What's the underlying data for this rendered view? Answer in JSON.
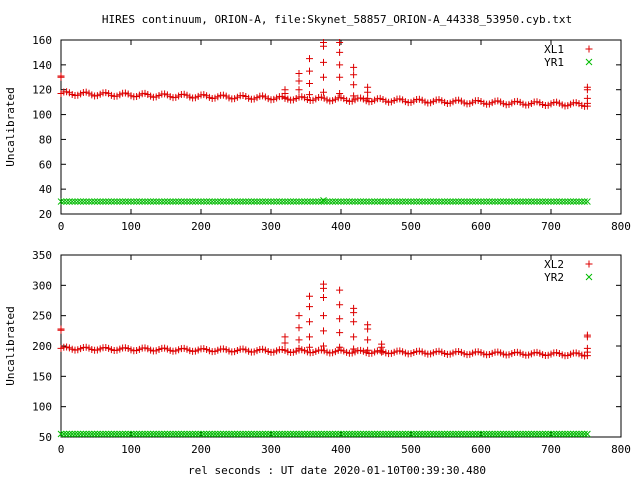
{
  "title": "HIRES continuum, ORION-A, file:Skynet_58857_ORION-A_44338_53950.cyb.txt",
  "xlabel": "rel seconds : UT date 2020-01-10T00:39:30.480",
  "colors": {
    "xl": "#dd0000",
    "yr": "#00bb00",
    "axis": "#000000"
  },
  "chart_data": [
    {
      "type": "scatter",
      "ylabel": "Uncalibrated",
      "xlim": [
        0,
        800
      ],
      "ylim": [
        20,
        160
      ],
      "x_ticks": [
        0,
        100,
        200,
        300,
        400,
        500,
        600,
        700,
        800
      ],
      "y_ticks": [
        20,
        40,
        60,
        80,
        100,
        120,
        140,
        160
      ],
      "legend_position": "top-right",
      "series": [
        {
          "name": "XL1",
          "marker": "plus",
          "baseline": {
            "x_start": 0,
            "x_end": 752,
            "x_step": 4,
            "level_start": 117,
            "level_end": 108,
            "ripple": 1.5,
            "ripple_period": 28
          },
          "extra_points": [
            [
              0,
              130
            ],
            [
              0,
              131
            ],
            [
              752,
              109
            ],
            [
              752,
              113
            ],
            [
              752,
              120
            ],
            [
              752,
              122
            ]
          ],
          "peaks": [
            {
              "x": 320,
              "values": [
                113,
                117,
                120
              ]
            },
            {
              "x": 340,
              "values": [
                114,
                120,
                127,
                133
              ]
            },
            {
              "x": 355,
              "values": [
                116,
                125,
                135,
                145
              ]
            },
            {
              "x": 375,
              "values": [
                118,
                130,
                142,
                155,
                158
              ]
            },
            {
              "x": 398,
              "values": [
                117,
                130,
                140,
                150,
                158
              ]
            },
            {
              "x": 418,
              "values": [
                115,
                124,
                132,
                138
              ]
            },
            {
              "x": 438,
              "values": [
                113,
                118,
                122
              ]
            }
          ]
        },
        {
          "name": "YR1",
          "marker": "cross",
          "baseline": {
            "x_start": 0,
            "x_end": 752,
            "x_step": 4,
            "level_start": 30,
            "level_end": 30,
            "ripple": 0,
            "ripple_period": 28
          },
          "extra_points": [
            [
              375,
              31
            ]
          ],
          "peaks": []
        }
      ]
    },
    {
      "type": "scatter",
      "ylabel": "Uncalibrated",
      "xlim": [
        0,
        800
      ],
      "ylim": [
        50,
        350
      ],
      "x_ticks": [
        0,
        100,
        200,
        300,
        400,
        500,
        600,
        700,
        800
      ],
      "y_ticks": [
        50,
        100,
        150,
        200,
        250,
        300,
        350
      ],
      "legend_position": "top-right",
      "series": [
        {
          "name": "XL2",
          "marker": "plus",
          "baseline": {
            "x_start": 0,
            "x_end": 752,
            "x_step": 4,
            "level_start": 196,
            "level_end": 186,
            "ripple": 2.5,
            "ripple_period": 28
          },
          "extra_points": [
            [
              0,
              226
            ],
            [
              0,
              228
            ],
            [
              752,
              190
            ],
            [
              752,
              196
            ],
            [
              752,
              215
            ],
            [
              752,
              218
            ]
          ],
          "peaks": [
            {
              "x": 320,
              "values": [
                193,
                205,
                215
              ]
            },
            {
              "x": 340,
              "values": [
                196,
                210,
                230,
                250
              ]
            },
            {
              "x": 355,
              "values": [
                198,
                215,
                240,
                265,
                282
              ]
            },
            {
              "x": 375,
              "values": [
                200,
                225,
                250,
                280,
                295,
                302
              ]
            },
            {
              "x": 398,
              "values": [
                198,
                222,
                245,
                268,
                292
              ]
            },
            {
              "x": 418,
              "values": [
                195,
                215,
                240,
                255,
                262
              ]
            },
            {
              "x": 438,
              "values": [
                193,
                210,
                228,
                235
              ]
            },
            {
              "x": 458,
              "values": [
                190,
                198,
                203
              ]
            }
          ]
        },
        {
          "name": "YR2",
          "marker": "cross",
          "baseline": {
            "x_start": 0,
            "x_end": 752,
            "x_step": 4,
            "level_start": 55,
            "level_end": 55,
            "ripple": 0,
            "ripple_period": 28
          },
          "extra_points": [],
          "peaks": []
        }
      ]
    }
  ]
}
